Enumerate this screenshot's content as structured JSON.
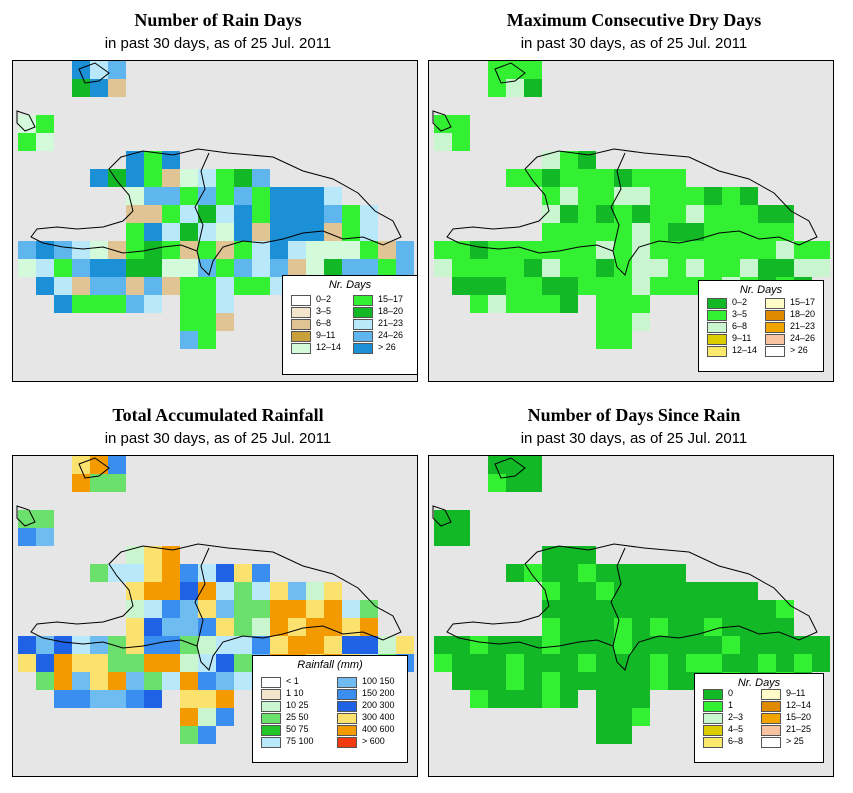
{
  "panels": [
    {
      "id": "rain-days",
      "title": "Number of Rain Days",
      "subtitle": "in past 30 days, as of  25 Jul. 2011",
      "legend": {
        "title": "Nr. Days",
        "items": [
          {
            "label": "0–2",
            "color": "#ffffff"
          },
          {
            "label": "3–5",
            "color": "#f3e6cd"
          },
          {
            "label": "6–8",
            "color": "#e0c494"
          },
          {
            "label": "9–11",
            "color": "#c9a13c"
          },
          {
            "label": "12–14",
            "color": "#d3fadb"
          },
          {
            "label": "15–17",
            "color": "#33f033"
          },
          {
            "label": "18–20",
            "color": "#12b826"
          },
          {
            "label": "21–23",
            "color": "#b9e8fa"
          },
          {
            "label": "24–26",
            "color": "#5fb6ee"
          },
          {
            "label": "> 26",
            "color": "#1b90d6"
          }
        ]
      }
    },
    {
      "id": "dry-days",
      "title": "Maximum Consecutive Dry Days",
      "subtitle": "in past 30 days, as of  25 Jul. 2011",
      "legend": {
        "title": "Nr. Days",
        "items": [
          {
            "label": "0–2",
            "color": "#12b826"
          },
          {
            "label": "3–5",
            "color": "#33f033"
          },
          {
            "label": "6–8",
            "color": "#c9f5cf"
          },
          {
            "label": "9–11",
            "color": "#dccd00"
          },
          {
            "label": "12–14",
            "color": "#fbe96e"
          },
          {
            "label": "15–17",
            "color": "#fffcc8"
          },
          {
            "label": "18–20",
            "color": "#e08a00"
          },
          {
            "label": "21–23",
            "color": "#f2a400"
          },
          {
            "label": "24–26",
            "color": "#f7c3a0"
          },
          {
            "label": "> 26",
            "color": "#ffffff"
          }
        ]
      }
    },
    {
      "id": "total-rainfall",
      "title": "Total Accumulated Rainfall",
      "subtitle": "in past 30 days, as of  25 Jul. 2011",
      "legend": {
        "title": "Rainfall (mm)",
        "items": [
          {
            "label": "< 1",
            "color": "#ffffff"
          },
          {
            "label": "1   10",
            "color": "#f3e6cd"
          },
          {
            "label": "10   25",
            "color": "#c9f5cf"
          },
          {
            "label": "25   50",
            "color": "#6ce06c"
          },
          {
            "label": "50   75",
            "color": "#22c42a"
          },
          {
            "label": "75   100",
            "color": "#b9e8fa"
          },
          {
            "label": "100   150",
            "color": "#6fbcf0"
          },
          {
            "label": "150   200",
            "color": "#3a8ef0"
          },
          {
            "label": "200   300",
            "color": "#1f62e6"
          },
          {
            "label": "300   400",
            "color": "#fbe16e"
          },
          {
            "label": "400   600",
            "color": "#f29a00"
          },
          {
            "label": "> 600",
            "color": "#f23a10"
          }
        ]
      }
    },
    {
      "id": "days-since-rain",
      "title": "Number of Days Since Rain",
      "subtitle": "in past 30 days, as of  25 Jul. 2011",
      "legend": {
        "title": "Nr. Days",
        "items": [
          {
            "label": "0",
            "color": "#12b826"
          },
          {
            "label": "1",
            "color": "#33f033"
          },
          {
            "label": "2–3",
            "color": "#c9f5cf"
          },
          {
            "label": "4–5",
            "color": "#dccd00"
          },
          {
            "label": "6–8",
            "color": "#fbe96e"
          },
          {
            "label": "9–11",
            "color": "#fffcc8"
          },
          {
            "label": "12–14",
            "color": "#e08a00"
          },
          {
            "label": "15–20",
            "color": "#f2a400"
          },
          {
            "label": "21–25",
            "color": "#f7c3a0"
          },
          {
            "label": "> 25",
            "color": "#ffffff"
          }
        ]
      }
    }
  ]
}
